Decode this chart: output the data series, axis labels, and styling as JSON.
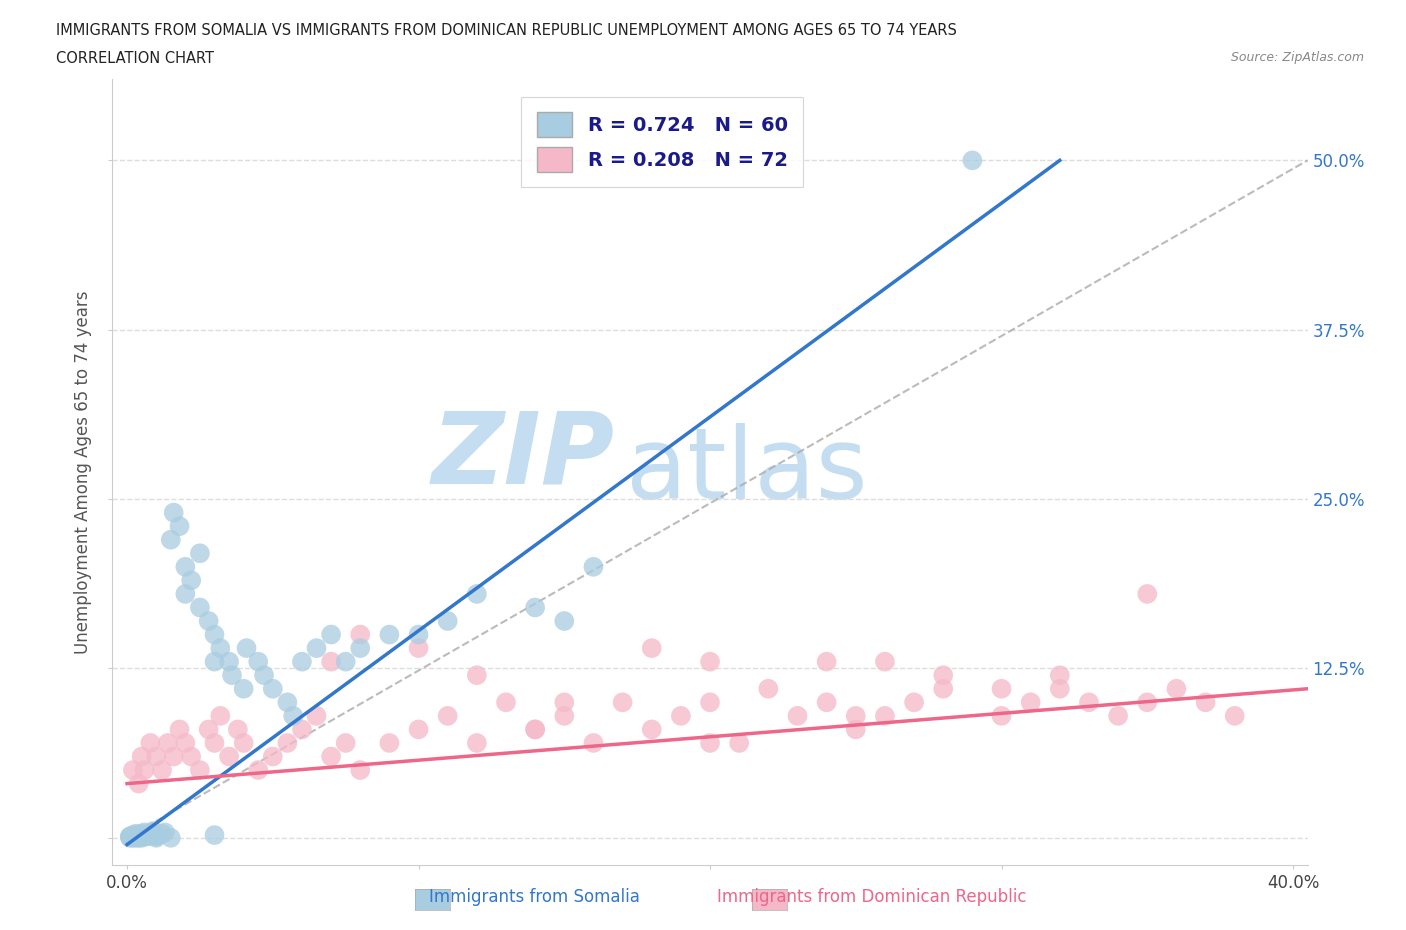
{
  "title_line1": "IMMIGRANTS FROM SOMALIA VS IMMIGRANTS FROM DOMINICAN REPUBLIC UNEMPLOYMENT AMONG AGES 65 TO 74 YEARS",
  "title_line2": "CORRELATION CHART",
  "source_text": "Source: ZipAtlas.com",
  "ylabel": "Unemployment Among Ages 65 to 74 years",
  "xlabel_somalia": "Immigrants from Somalia",
  "xlabel_domrep": "Immigrants from Dominican Republic",
  "xlim": [
    -0.005,
    0.405
  ],
  "ylim": [
    -0.02,
    0.56
  ],
  "xtick_positions": [
    0.0,
    0.1,
    0.2,
    0.3,
    0.4
  ],
  "xtick_labels_show": [
    "0.0%",
    "",
    "",
    "",
    "40.0%"
  ],
  "ytick_positions": [
    0.0,
    0.125,
    0.25,
    0.375,
    0.5
  ],
  "ytick_labels_right": [
    "",
    "12.5%",
    "25.0%",
    "37.5%",
    "50.0%"
  ],
  "somalia_color": "#a8cce0",
  "domrep_color": "#f5b8c8",
  "somalia_line_color": "#3377cc",
  "domrep_line_color": "#ee6688",
  "diag_line_color": "#aaaaaa",
  "legend_text_color": "#1a1a8c",
  "right_axis_color": "#3377cc",
  "background_color": "#ffffff",
  "grid_color": "#dddddd",
  "watermark_zip": "ZIP",
  "watermark_atlas": "atlas",
  "watermark_color": "#c5ddf0",
  "somalia_R": 0.724,
  "somalia_N": 60,
  "domrep_R": 0.208,
  "domrep_N": 72,
  "somalia_line_x0": 0.0,
  "somalia_line_y0": -0.005,
  "somalia_line_x1": 0.32,
  "somalia_line_y1": 0.5,
  "domrep_line_x0": 0.0,
  "domrep_line_y0": 0.04,
  "domrep_line_x1": 0.405,
  "domrep_line_y1": 0.11
}
